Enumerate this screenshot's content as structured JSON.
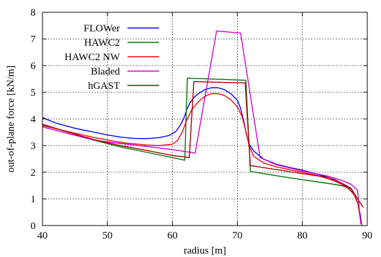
{
  "chart_data": {
    "type": "line",
    "title": "",
    "xlabel": "radius [m]",
    "ylabel": "out-of-plane force [kN/m]",
    "xlim": [
      40,
      90
    ],
    "ylim": [
      0,
      8
    ],
    "xticks": [
      40,
      50,
      60,
      70,
      80,
      90
    ],
    "yticks": [
      0,
      1,
      2,
      3,
      4,
      5,
      6,
      7,
      8
    ],
    "grid": true,
    "legend_position": "top-left",
    "series": [
      {
        "name": "FLOWer",
        "color": "#0000ff",
        "x": [
          40,
          42,
          45,
          48,
          50,
          52,
          54,
          56,
          58,
          59.5,
          60.5,
          61.2,
          61.8,
          62.2,
          62.7,
          63.3,
          64,
          65,
          66,
          67,
          68,
          69,
          70,
          70.5,
          71,
          71.4,
          71.8,
          72.5,
          74,
          76,
          78,
          80,
          82,
          84,
          85,
          86,
          87,
          88,
          88.6,
          89
        ],
        "y": [
          4.05,
          3.85,
          3.65,
          3.5,
          3.4,
          3.32,
          3.27,
          3.26,
          3.3,
          3.38,
          3.52,
          3.75,
          4.05,
          4.35,
          4.6,
          4.8,
          4.95,
          5.1,
          5.17,
          5.17,
          5.1,
          4.95,
          4.7,
          4.4,
          3.9,
          3.4,
          3.05,
          2.8,
          2.5,
          2.3,
          2.18,
          2.08,
          1.95,
          1.8,
          1.72,
          1.6,
          1.42,
          1.15,
          0.8,
          0.3
        ]
      },
      {
        "name": "HAWC2",
        "color": "#007000",
        "x": [
          40,
          44,
          48,
          52,
          56,
          60,
          61.9,
          62.3,
          71.3,
          72,
          76,
          80,
          84,
          86,
          87.5,
          88.5,
          89.2
        ],
        "y": [
          3.78,
          3.5,
          3.2,
          2.95,
          2.75,
          2.55,
          2.45,
          5.53,
          5.45,
          2.03,
          1.87,
          1.72,
          1.58,
          1.5,
          1.38,
          0.88,
          0
        ]
      },
      {
        "name": "HAWC2 NW",
        "color": "#ff0000",
        "x": [
          40,
          44,
          48,
          52,
          56,
          58,
          60,
          60.8,
          61.5,
          62.2,
          63,
          64,
          65,
          66,
          67,
          68,
          69,
          70,
          70.7,
          71.3,
          71.8,
          72.5,
          74,
          76,
          78,
          80,
          82,
          84,
          85,
          86,
          87,
          88,
          88.6,
          89
        ],
        "y": [
          3.75,
          3.52,
          3.3,
          3.12,
          3.02,
          3.0,
          3.05,
          3.2,
          3.5,
          3.95,
          4.35,
          4.65,
          4.85,
          4.95,
          4.95,
          4.88,
          4.72,
          4.45,
          4.1,
          3.55,
          3.0,
          2.6,
          2.35,
          2.2,
          2.1,
          2.0,
          1.9,
          1.75,
          1.67,
          1.55,
          1.4,
          1.17,
          0.78,
          0.12
        ]
      },
      {
        "name": "Bladed",
        "color": "#cc00cc",
        "x": [
          40,
          44,
          48,
          52,
          56,
          60,
          63.5,
          66.8,
          70.5,
          73.5,
          76,
          80,
          84,
          86,
          87.5,
          88.5,
          89
        ],
        "y": [
          3.7,
          3.45,
          3.2,
          3.08,
          2.97,
          2.85,
          2.72,
          7.3,
          7.22,
          2.55,
          2.28,
          2.05,
          1.85,
          1.7,
          1.55,
          1.32,
          0.05
        ]
      },
      {
        "name": "hGAST",
        "color": "#a00000",
        "x": [
          40,
          44,
          48,
          52,
          56,
          60,
          62.6,
          63.3,
          71.2,
          72,
          76,
          80,
          84,
          86,
          87.5,
          88.5,
          89.4
        ],
        "y": [
          3.8,
          3.5,
          3.22,
          3.0,
          2.82,
          2.63,
          2.55,
          5.4,
          5.35,
          2.25,
          2.1,
          1.95,
          1.8,
          1.6,
          1.4,
          1.0,
          0.68
        ]
      }
    ]
  }
}
